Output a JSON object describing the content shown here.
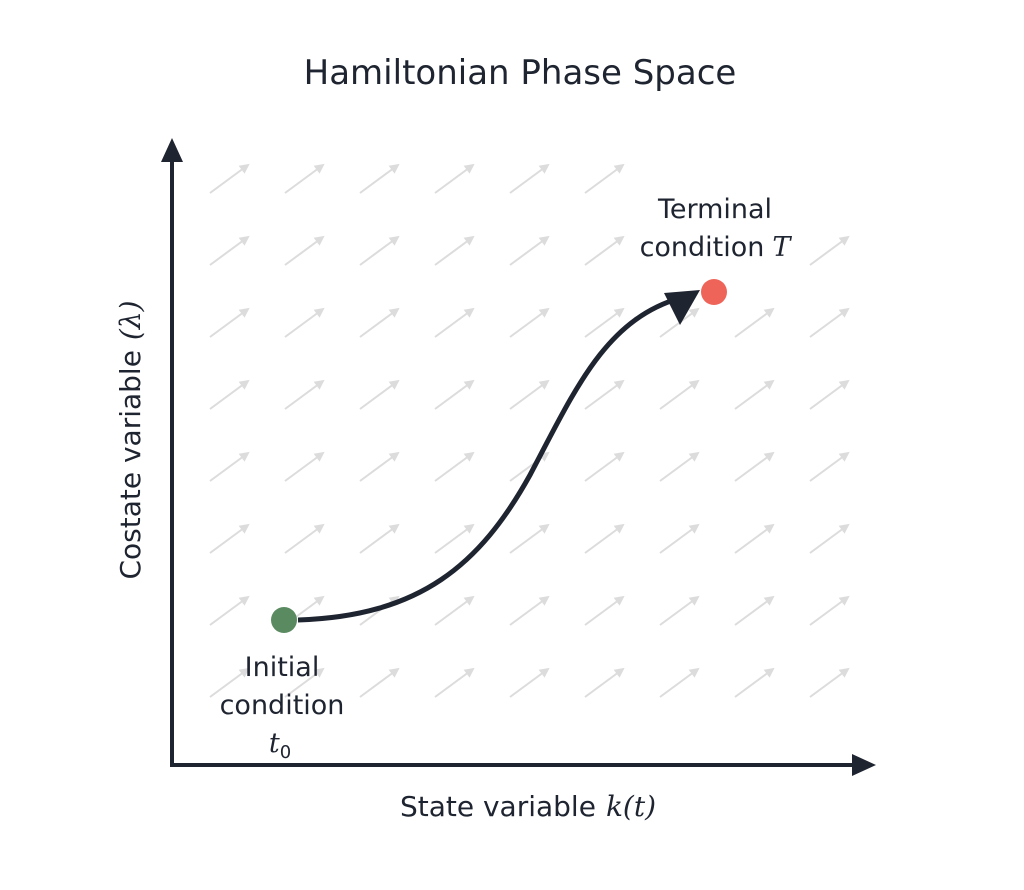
{
  "title": "Hamiltonian Phase Space",
  "x_axis": {
    "label": "State variable",
    "symbol": "k(t)"
  },
  "y_axis": {
    "label": "Costate variable",
    "symbol": "(λ)"
  },
  "initial": {
    "lines": [
      "Initial",
      "condition"
    ],
    "symbol": "t",
    "subscript": "0"
  },
  "terminal": {
    "lines": [
      "Terminal",
      "condition"
    ],
    "symbol": "T"
  }
}
